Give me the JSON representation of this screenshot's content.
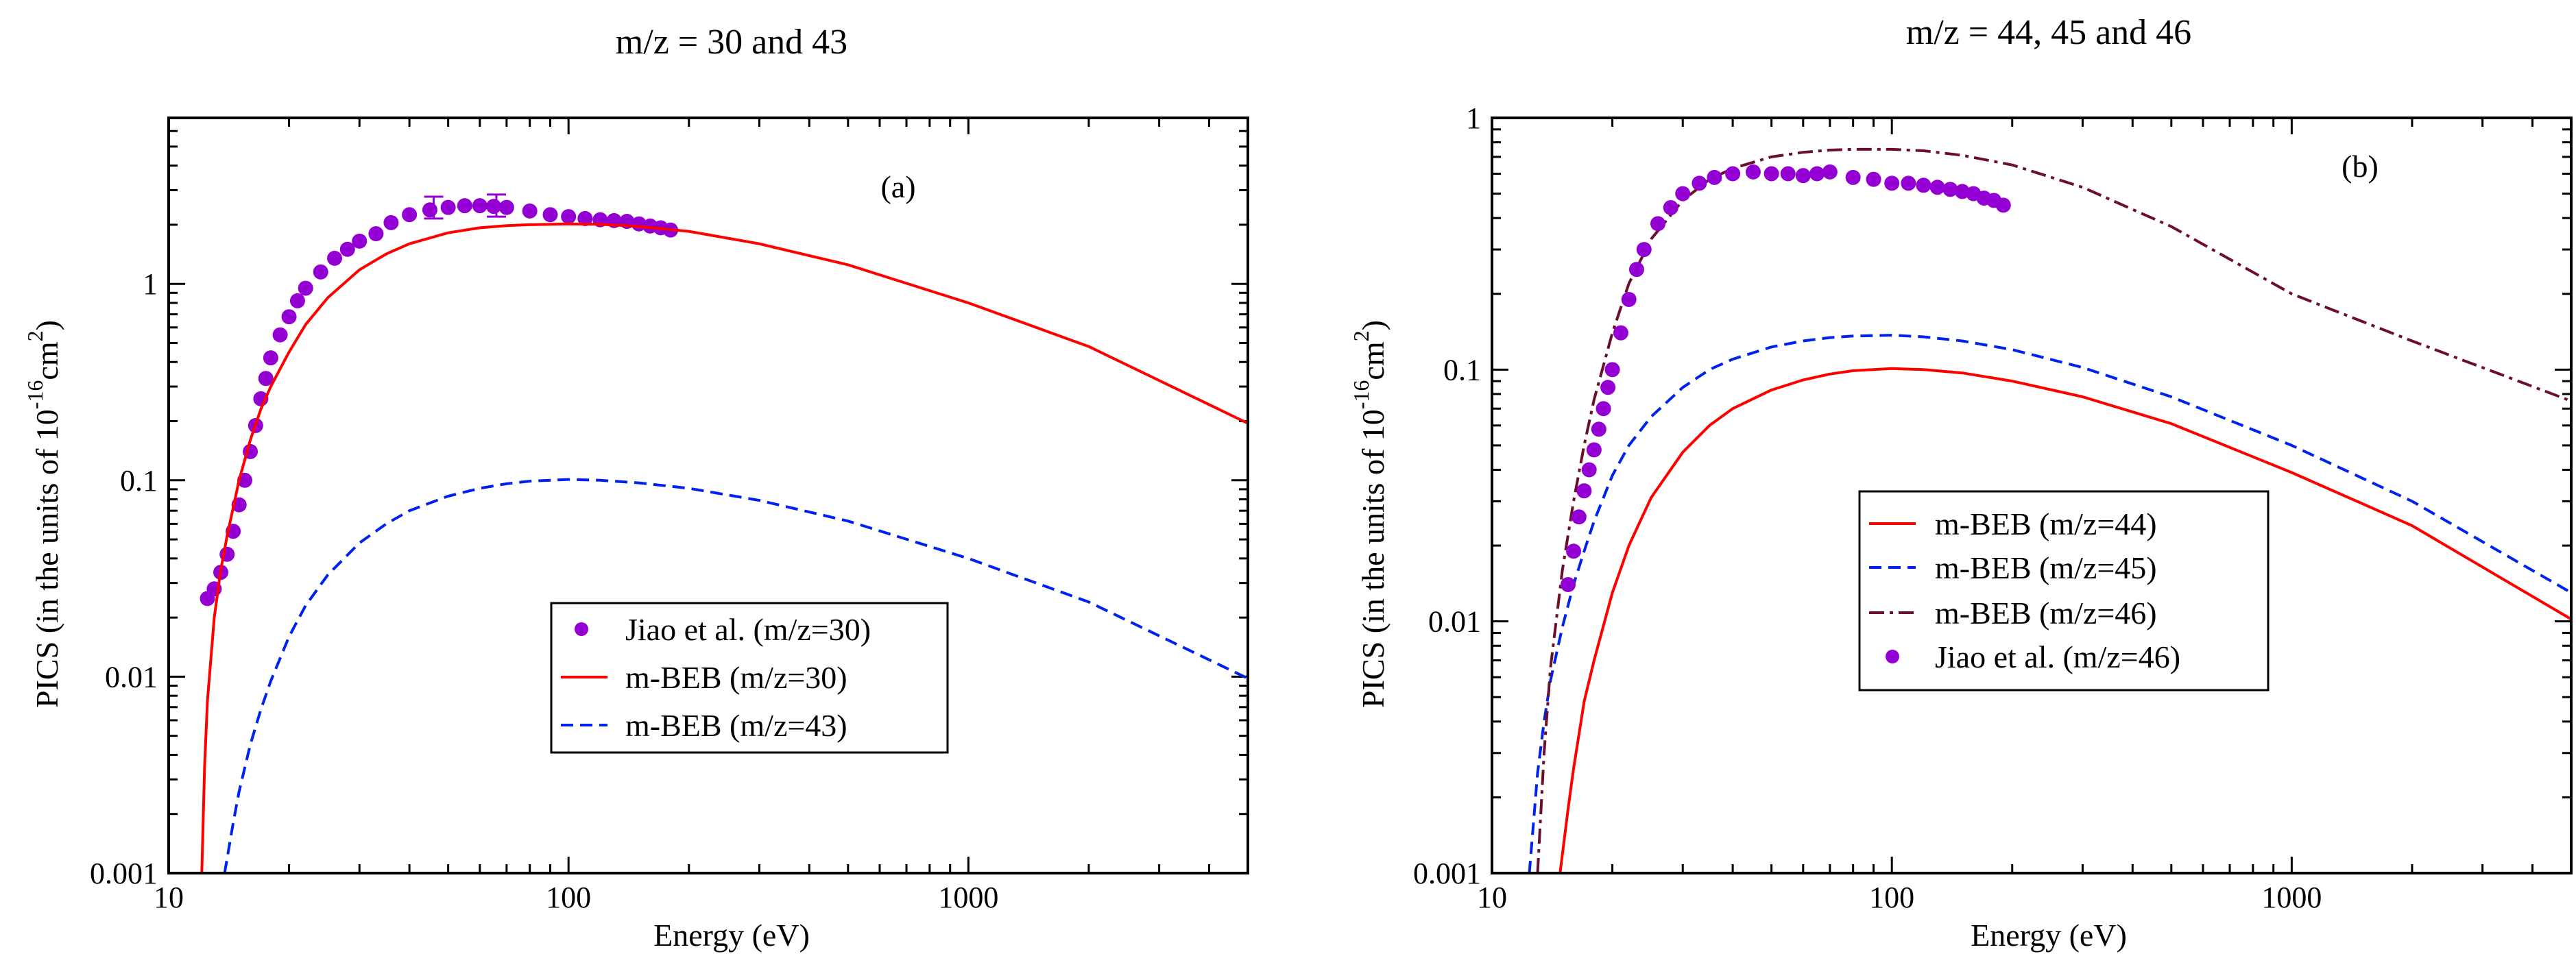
{
  "chart_data": [
    {
      "type": "line",
      "title": "m/z = 30 and 43",
      "panel_label": "(a)",
      "xlabel": "Energy (eV)",
      "ylabel_main": "PICS (in the units of 10",
      "ylabel_exp": "-16",
      "ylabel_unit": "cm",
      "ylabel_unit_exp": "2",
      "ylabel_close": ")",
      "xscale": "log",
      "yscale": "log",
      "xlim": [
        10,
        5000
      ],
      "ylim": [
        0.001,
        7
      ],
      "xticks": [
        10,
        100,
        1000
      ],
      "xtick_labels": [
        "10",
        "100",
        "1000"
      ],
      "yticks": [
        0.001,
        0.01,
        0.1,
        1
      ],
      "ytick_labels": [
        "0.001",
        "0.01",
        "0.1",
        "1"
      ],
      "legend_position": "lower-center",
      "series": [
        {
          "name": "Jiao et al. (m/z=30)",
          "kind": "scatter",
          "color": "#9400d3",
          "x": [
            12.5,
            13.0,
            13.5,
            14.0,
            14.5,
            15.0,
            15.5,
            16.0,
            16.5,
            17.0,
            17.5,
            18.0,
            19.0,
            20.0,
            21.0,
            22.0,
            24.0,
            26.0,
            28.0,
            30.0,
            33.0,
            36.0,
            40.0,
            45.0,
            50.0,
            55.0,
            60.0,
            65.0,
            70.0,
            80.0,
            90.0,
            100.0,
            110.0,
            120.0,
            130.0,
            140.0,
            150.0,
            160.0,
            170.0,
            180.0
          ],
          "y": [
            0.025,
            0.028,
            0.034,
            0.042,
            0.055,
            0.075,
            0.1,
            0.14,
            0.19,
            0.26,
            0.33,
            0.42,
            0.55,
            0.68,
            0.82,
            0.95,
            1.15,
            1.35,
            1.5,
            1.65,
            1.8,
            2.05,
            2.25,
            2.38,
            2.45,
            2.5,
            2.5,
            2.48,
            2.45,
            2.35,
            2.25,
            2.2,
            2.15,
            2.12,
            2.1,
            2.08,
            2.02,
            1.97,
            1.93,
            1.88
          ],
          "error_bars": [
            {
              "x": 46,
              "y": 2.45,
              "low": 2.15,
              "high": 2.78
            },
            {
              "x": 66,
              "y": 2.5,
              "low": 2.2,
              "high": 2.85
            }
          ]
        },
        {
          "name": "m-BEB (m/z=30)",
          "kind": "line",
          "style": "solid",
          "color": "#ff0000",
          "x": [
            12.1,
            12.3,
            12.5,
            13.0,
            13.5,
            14.0,
            15.0,
            16.0,
            17.0,
            18.0,
            20.0,
            22.0,
            25.0,
            30.0,
            35.0,
            40.0,
            50.0,
            60.0,
            70.0,
            80.0,
            100.0,
            120.0,
            150.0,
            200.0,
            300.0,
            500.0,
            1000.0,
            2000.0,
            5000.0
          ],
          "y": [
            0.001,
            0.0035,
            0.0075,
            0.02,
            0.035,
            0.052,
            0.1,
            0.16,
            0.23,
            0.3,
            0.45,
            0.62,
            0.85,
            1.18,
            1.42,
            1.6,
            1.82,
            1.93,
            1.98,
            2.0,
            2.02,
            2.01,
            1.96,
            1.85,
            1.6,
            1.25,
            0.8,
            0.48,
            0.195
          ]
        },
        {
          "name": "m-BEB (m/z=43)",
          "kind": "line",
          "style": "dashed",
          "color": "#0022ee",
          "x": [
            13.8,
            14.5,
            15.0,
            16.0,
            17.0,
            18.0,
            20.0,
            22.0,
            25.0,
            30.0,
            35.0,
            40.0,
            50.0,
            60.0,
            70.0,
            80.0,
            100.0,
            120.0,
            150.0,
            200.0,
            300.0,
            500.0,
            1000.0,
            2000.0,
            5000.0
          ],
          "y": [
            0.001,
            0.0018,
            0.0026,
            0.0045,
            0.0068,
            0.0095,
            0.016,
            0.023,
            0.033,
            0.048,
            0.06,
            0.07,
            0.083,
            0.091,
            0.096,
            0.099,
            0.101,
            0.1,
            0.097,
            0.091,
            0.079,
            0.062,
            0.04,
            0.024,
            0.0098
          ]
        }
      ]
    },
    {
      "type": "line",
      "title": "m/z = 44, 45 and 46",
      "panel_label": "(b)",
      "xlabel": "Energy (eV)",
      "ylabel_main": "PICS (in the units of 10",
      "ylabel_exp": "-16",
      "ylabel_unit": "cm",
      "ylabel_unit_exp": "2",
      "ylabel_close": ")",
      "xscale": "log",
      "yscale": "log",
      "xlim": [
        10,
        5000
      ],
      "ylim": [
        0.001,
        1
      ],
      "xticks": [
        10,
        100,
        1000
      ],
      "xtick_labels": [
        "10",
        "100",
        "1000"
      ],
      "yticks": [
        0.001,
        0.01,
        0.1,
        1
      ],
      "ytick_labels": [
        "0.001",
        "0.01",
        "0.1",
        "1"
      ],
      "legend_position": "center-right",
      "series": [
        {
          "name": "m-BEB (m/z=44)",
          "kind": "line",
          "style": "solid",
          "color": "#ff0000",
          "x": [
            14.8,
            15.5,
            16.0,
            17.0,
            18.0,
            20.0,
            22.0,
            25.0,
            30.0,
            35.0,
            40.0,
            50.0,
            60.0,
            70.0,
            80.0,
            100.0,
            120.0,
            150.0,
            200.0,
            300.0,
            500.0,
            1000.0,
            2000.0,
            5000.0
          ],
          "y": [
            0.001,
            0.0018,
            0.0026,
            0.0048,
            0.007,
            0.013,
            0.02,
            0.031,
            0.047,
            0.06,
            0.07,
            0.083,
            0.091,
            0.096,
            0.099,
            0.101,
            0.1,
            0.097,
            0.09,
            0.078,
            0.061,
            0.039,
            0.024,
            0.0102
          ]
        },
        {
          "name": "m-BEB (m/z=45)",
          "kind": "line",
          "style": "dashed",
          "color": "#0022ee",
          "x": [
            12.4,
            13.0,
            13.5,
            14.0,
            15.0,
            16.0,
            17.0,
            18.0,
            20.0,
            22.0,
            25.0,
            30.0,
            35.0,
            40.0,
            50.0,
            60.0,
            70.0,
            80.0,
            100.0,
            120.0,
            150.0,
            200.0,
            300.0,
            500.0,
            1000.0,
            2000.0,
            5000.0
          ],
          "y": [
            0.001,
            0.0025,
            0.004,
            0.0058,
            0.0095,
            0.014,
            0.019,
            0.025,
            0.038,
            0.05,
            0.065,
            0.085,
            0.1,
            0.11,
            0.123,
            0.13,
            0.134,
            0.136,
            0.137,
            0.135,
            0.13,
            0.12,
            0.102,
            0.078,
            0.05,
            0.03,
            0.013
          ]
        },
        {
          "name": "m-BEB (m/z=46)",
          "kind": "line",
          "style": "dashdot",
          "color": "#6b0f2a",
          "x": [
            13.0,
            13.5,
            14.0,
            15.0,
            16.0,
            17.0,
            18.0,
            20.0,
            22.0,
            25.0,
            30.0,
            35.0,
            40.0,
            50.0,
            60.0,
            70.0,
            80.0,
            100.0,
            120.0,
            150.0,
            200.0,
            300.0,
            500.0,
            1000.0,
            2000.0,
            5000.0
          ],
          "y": [
            0.001,
            0.003,
            0.0065,
            0.016,
            0.03,
            0.05,
            0.076,
            0.14,
            0.22,
            0.33,
            0.47,
            0.57,
            0.63,
            0.7,
            0.73,
            0.745,
            0.75,
            0.75,
            0.74,
            0.71,
            0.65,
            0.53,
            0.37,
            0.2,
            0.13,
            0.075
          ]
        },
        {
          "name": "Jiao et al. (m/z=46)",
          "kind": "scatter",
          "color": "#9400d3",
          "x": [
            15.5,
            16.0,
            16.5,
            17.0,
            17.5,
            18.0,
            18.5,
            19.0,
            19.5,
            20.0,
            21.0,
            22.0,
            23.0,
            24.0,
            26.0,
            28.0,
            30.0,
            33.0,
            36.0,
            40.0,
            45.0,
            50.0,
            55.0,
            60.0,
            65.0,
            70.0,
            80.0,
            90.0,
            100.0,
            110.0,
            120.0,
            130.0,
            140.0,
            150.0,
            160.0,
            170.0,
            180.0,
            190.0
          ],
          "y": [
            0.014,
            0.019,
            0.026,
            0.033,
            0.04,
            0.048,
            0.058,
            0.07,
            0.085,
            0.1,
            0.14,
            0.19,
            0.25,
            0.3,
            0.38,
            0.44,
            0.5,
            0.55,
            0.58,
            0.6,
            0.61,
            0.6,
            0.6,
            0.59,
            0.6,
            0.61,
            0.58,
            0.57,
            0.55,
            0.55,
            0.54,
            0.53,
            0.52,
            0.51,
            0.5,
            0.48,
            0.47,
            0.45
          ]
        }
      ]
    }
  ]
}
